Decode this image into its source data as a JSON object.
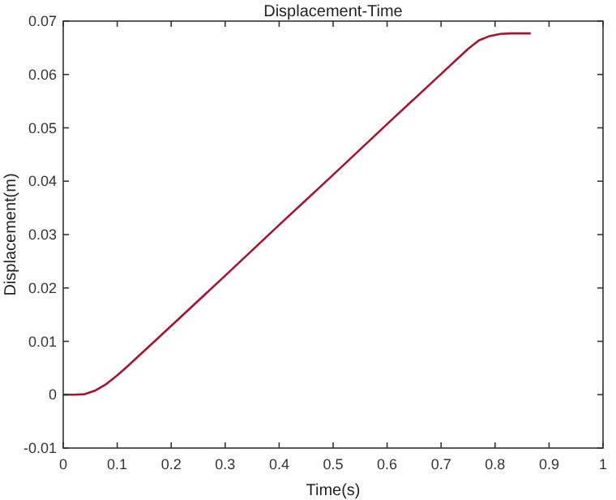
{
  "chart_data": {
    "type": "line",
    "title": "Displacement-Time",
    "xlabel": "Time(s)",
    "ylabel": "Displacement(m)",
    "x": [
      0,
      0.02,
      0.04,
      0.06,
      0.08,
      0.1,
      0.12,
      0.2,
      0.3,
      0.4,
      0.5,
      0.6,
      0.7,
      0.75,
      0.77,
      0.79,
      0.81,
      0.83,
      0.866
    ],
    "series": [
      {
        "color": "#a2142f",
        "values": [
          0,
          0,
          0.0001,
          0.0008,
          0.002,
          0.0036,
          0.0054,
          0.0129,
          0.0223,
          0.0318,
          0.0412,
          0.0507,
          0.0601,
          0.0648,
          0.0664,
          0.0672,
          0.0676,
          0.0677,
          0.0677
        ]
      }
    ],
    "xlim": [
      0,
      1
    ],
    "xticks": [
      0,
      0.1,
      0.2,
      0.3,
      0.4,
      0.5,
      0.6,
      0.7,
      0.8,
      0.9,
      1
    ],
    "ylim": [
      -0.01,
      0.07
    ],
    "yticks": [
      -0.01,
      0,
      0.01,
      0.02,
      0.03,
      0.04,
      0.05,
      0.06,
      0.07
    ],
    "grid": false,
    "marker": "none",
    "line_style": "solid"
  }
}
